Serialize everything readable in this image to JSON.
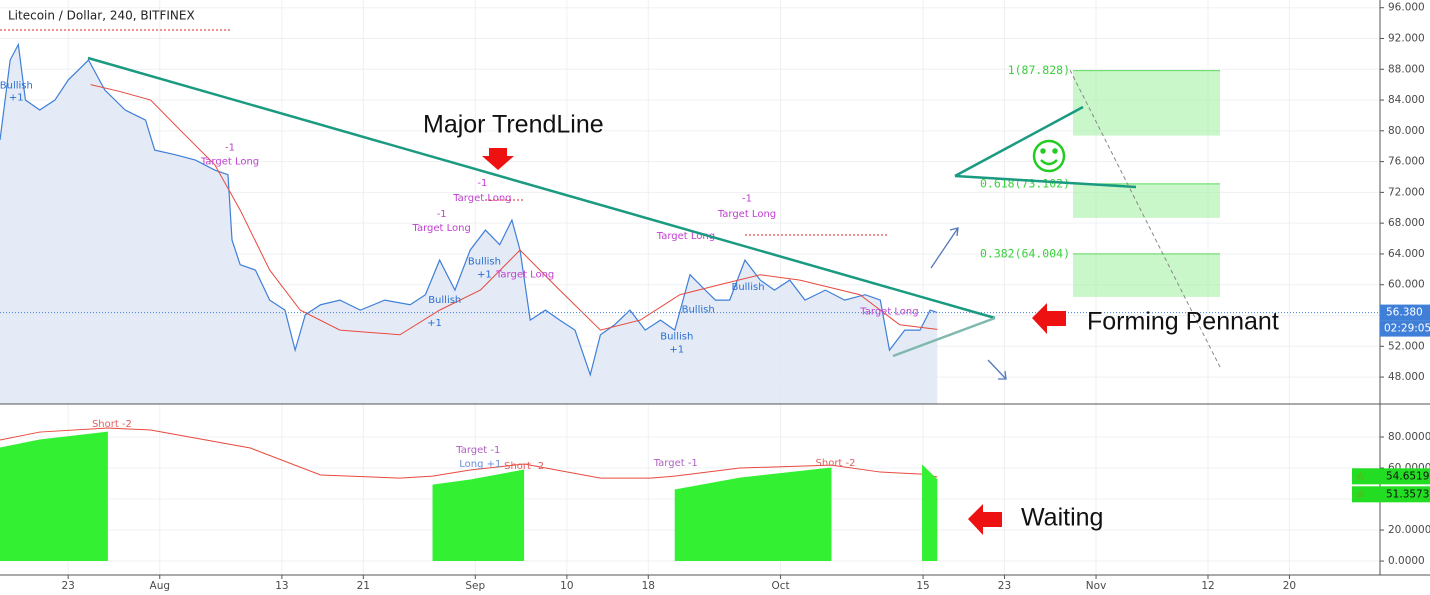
{
  "chart_data": [
    {
      "type": "line",
      "title": "Litecoin / Dollar, 240, BITFINEX",
      "xlim": [
        -6.7,
        128.9
      ],
      "ylim": [
        44.5,
        97
      ],
      "yticks": [
        {
          "value": 48,
          "label": "48.000"
        },
        {
          "value": 52,
          "label": "52.000"
        },
        {
          "value": 56,
          "label": "56.000"
        },
        {
          "value": 60,
          "label": "60.000"
        },
        {
          "value": 64,
          "label": "64.000"
        },
        {
          "value": 68,
          "label": "68.000"
        },
        {
          "value": 72,
          "label": "72.000"
        },
        {
          "value": 76,
          "label": "76.000"
        },
        {
          "value": 80,
          "label": "80.000"
        },
        {
          "value": 84,
          "label": "84.000"
        },
        {
          "value": 88,
          "label": "88.000"
        },
        {
          "value": 92,
          "label": "92.000"
        },
        {
          "value": 96,
          "label": "96.000"
        }
      ],
      "series": [
        {
          "color": "#3f7fd8",
          "area": true,
          "x": [
            -6.7,
            -5.7,
            -4.9,
            -4.2,
            -2.8,
            -1.3,
            0,
            2.0,
            3.6,
            5.6,
            7.6,
            8.5,
            10.5,
            12.5,
            14.4,
            15.7,
            16.1,
            16.9,
            18.4,
            19.8,
            21.3,
            22.3,
            23.3,
            24.8,
            26.7,
            28.7,
            31.1,
            33.6,
            35.1,
            36.5,
            38.0,
            39.5,
            41.0,
            42.4,
            43.6,
            44.4,
            45.4,
            46.9,
            48.3,
            49.8,
            51.3,
            52.3,
            53.7,
            55.2,
            56.7,
            58.2,
            59.6,
            61.1,
            62.6,
            63.6,
            65.0,
            66.5,
            68.0,
            69.4,
            70.9,
            72.4,
            74.4,
            76.3,
            78.3,
            79.8,
            80.7,
            82.2,
            83.7,
            84.7,
            85.4
          ],
          "values": [
            78.8,
            89.2,
            91.2,
            84,
            82.7,
            84,
            86.6,
            89.2,
            85.3,
            82.7,
            81.4,
            77.5,
            76.9,
            76.2,
            74.9,
            74.3,
            65.8,
            62.6,
            61.9,
            58,
            56.7,
            51.5,
            56.1,
            57.4,
            58,
            56.7,
            58,
            57.4,
            58.7,
            63.2,
            59.3,
            64.5,
            67.1,
            65.2,
            68.4,
            64.5,
            55.4,
            56.7,
            55.4,
            54.1,
            48.3,
            53.5,
            54.8,
            56.7,
            54.1,
            55.4,
            54.1,
            61.3,
            59.3,
            58,
            58,
            63.2,
            60.6,
            59.3,
            60.6,
            58,
            59.3,
            58,
            58.7,
            58,
            51.5,
            54.1,
            54.1,
            56.7,
            56.38
          ]
        },
        {
          "color": "#e8493e",
          "x": [
            2.2,
            5.1,
            8.1,
            11.0,
            14.4,
            16.9,
            19.8,
            22.8,
            26.7,
            32.6,
            36.5,
            40.5,
            44.4,
            48.3,
            52.3,
            56.2,
            60.1,
            64.0,
            68.0,
            71.9,
            77.8,
            81.7,
            85.4
          ],
          "values": [
            86.0,
            85.1,
            84.0,
            80.1,
            75.6,
            69.7,
            61.9,
            56.7,
            54.1,
            53.5,
            56.7,
            59.3,
            64.5,
            59.3,
            54.1,
            55.4,
            58.7,
            60.0,
            61.3,
            60.6,
            58.7,
            54.8,
            54.2
          ]
        }
      ],
      "last_price": {
        "value": 56.38,
        "label": "56.380"
      },
      "countdown": "02:29:05",
      "fib_levels": [
        {
          "value": 87.828,
          "label": "1(87.828)"
        },
        {
          "value": 73.102,
          "label": "0.618(73.102)"
        },
        {
          "value": 64.004,
          "label": "0.382(64.004)"
        }
      ],
      "annotations": [
        {
          "text": "-1",
          "x": 15.9,
          "y": 77.8,
          "color": "#c040d0"
        },
        {
          "text": "Target Long",
          "x": 15.9,
          "y": 76.0,
          "color": "#c040d0"
        },
        {
          "text": "-1",
          "x": 36.7,
          "y": 69.2,
          "color": "#c040d0"
        },
        {
          "text": "Target Long",
          "x": 36.7,
          "y": 67.4,
          "color": "#c040d0"
        },
        {
          "text": "-1",
          "x": 40.7,
          "y": 73.2,
          "color": "#c040d0"
        },
        {
          "text": "Target Long",
          "x": 40.7,
          "y": 71.3,
          "color": "#c040d0"
        },
        {
          "text": "Target Long",
          "x": 44.9,
          "y": 61.3,
          "color": "#c040d0"
        },
        {
          "text": "Target Long",
          "x": 60.7,
          "y": 66.3,
          "color": "#c040d0"
        },
        {
          "text": "-1",
          "x": 66.7,
          "y": 71.2,
          "color": "#c040d0"
        },
        {
          "text": "Target Long",
          "x": 66.7,
          "y": 69.2,
          "color": "#c040d0"
        },
        {
          "text": "Target Long",
          "x": 80.7,
          "y": 56.5,
          "color": "#c040d0"
        },
        {
          "text": "Bullish",
          "x": -5.1,
          "y": 85.9,
          "color": "#2a6fd0"
        },
        {
          "text": "+1",
          "x": -5.1,
          "y": 84.3,
          "color": "#2a6fd0"
        },
        {
          "text": "Bullish",
          "x": 37.0,
          "y": 58.0,
          "color": "#2a6fd0"
        },
        {
          "text": "+1",
          "x": 36.0,
          "y": 55.0,
          "color": "#2a6fd0"
        },
        {
          "text": "Bullish",
          "x": 40.9,
          "y": 63.0,
          "color": "#2a6fd0"
        },
        {
          "text": "+1",
          "x": 40.9,
          "y": 61.3,
          "color": "#2a6fd0"
        },
        {
          "text": "Bullish",
          "x": 61.9,
          "y": 56.8,
          "color": "#2a6fd0"
        },
        {
          "text": "Bullish",
          "x": 59.8,
          "y": 53.3,
          "color": "#2a6fd0"
        },
        {
          "text": "+1",
          "x": 59.8,
          "y": 51.6,
          "color": "#2a6fd0"
        },
        {
          "text": "Bullish",
          "x": 66.8,
          "y": 59.7,
          "color": "#2a6fd0"
        }
      ],
      "callouts": [
        "Major TrendLine",
        "Forming Pennant",
        "Waiting"
      ]
    },
    {
      "type": "line",
      "xlim": [
        -6.7,
        128.9
      ],
      "ylim": [
        -9,
        101.3
      ],
      "xticks": [
        {
          "value": 0,
          "label": "23"
        },
        {
          "value": 9,
          "label": "Aug"
        },
        {
          "value": 21,
          "label": "13"
        },
        {
          "value": 29,
          "label": "21"
        },
        {
          "value": 40,
          "label": "Sep"
        },
        {
          "value": 49,
          "label": "10"
        },
        {
          "value": 57,
          "label": "18"
        },
        {
          "value": 70,
          "label": "Oct"
        },
        {
          "value": 84,
          "label": "15"
        },
        {
          "value": 92,
          "label": "23"
        },
        {
          "value": 101,
          "label": "Nov"
        },
        {
          "value": 112,
          "label": "12"
        },
        {
          "value": 120,
          "label": "20"
        }
      ],
      "yticks": [
        {
          "value": 0,
          "label": "0.0000"
        },
        {
          "value": 20,
          "label": "20.0000"
        },
        {
          "value": 40,
          "label": "40.0000"
        },
        {
          "value": 60,
          "label": "60.0000"
        },
        {
          "value": 80,
          "label": "80.0000"
        }
      ],
      "x": [
        -6.7,
        -2.8,
        3.9,
        8.1,
        17.9,
        24.8,
        32.6,
        35.8,
        39.5,
        44.8,
        52.3,
        57.2,
        59.6,
        66.0,
        75.0,
        79.8,
        83.9,
        85.4
      ],
      "series": [
        {
          "color": "#e8493e",
          "values": [
            78.1,
            83.2,
            85.8,
            84.5,
            72.9,
            55.5,
            53.5,
            54.8,
            58.7,
            62.6,
            53.5,
            53.5,
            54.8,
            60.0,
            61.9,
            57.4,
            56.1,
            54.2
          ]
        },
        {
          "color": "#33f033",
          "area": true,
          "values": [
            72.9,
            78.1,
            83.2,
            null,
            null,
            null,
            null,
            49.0,
            52.3,
            58.7,
            null,
            null,
            45.8,
            53.5,
            60.0,
            null,
            61.9,
            52.3
          ]
        }
      ],
      "last_values": [
        54.6519,
        51.3573
      ],
      "annotations": [
        {
          "text": "Short -2",
          "x": 4.3,
          "y": 88.4,
          "color": "#e06060"
        },
        {
          "text": "Target -1",
          "x": 40.3,
          "y": 71.6,
          "color": "#b060c0"
        },
        {
          "text": "Long +1",
          "x": 40.5,
          "y": 62.6,
          "color": "#6a8fd8"
        },
        {
          "text": "Short -2",
          "x": 44.8,
          "y": 61.3,
          "color": "#e06060"
        },
        {
          "text": "Target -1",
          "x": 59.7,
          "y": 63.2,
          "color": "#b060c0"
        },
        {
          "text": "Short -2",
          "x": 75.4,
          "y": 63.2,
          "color": "#e06060"
        }
      ]
    }
  ]
}
